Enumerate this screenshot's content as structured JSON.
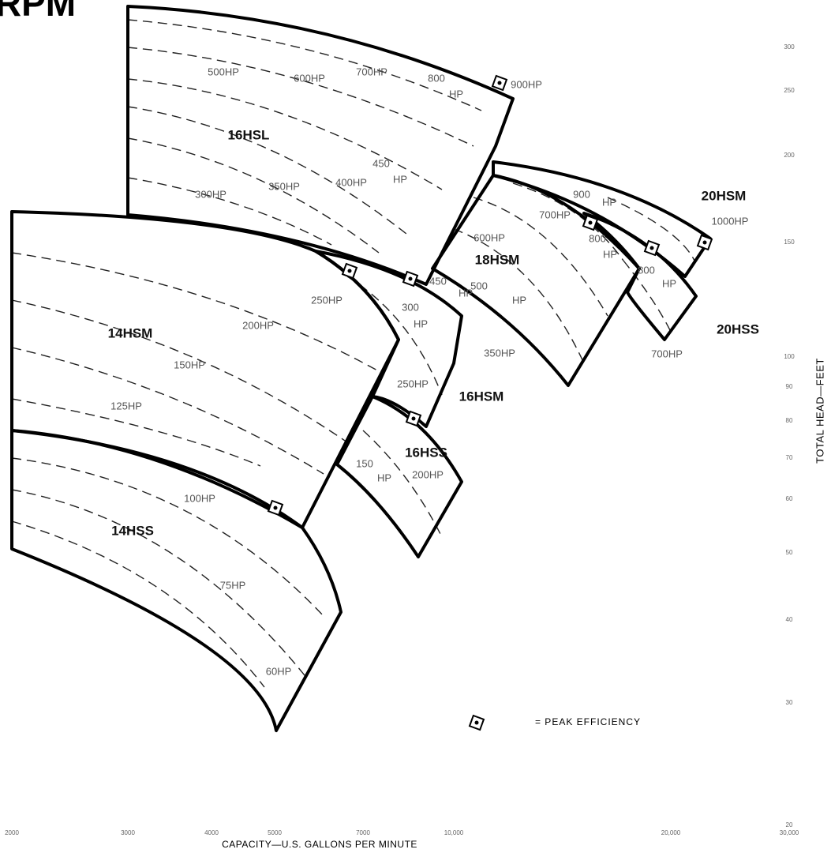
{
  "title": "RPM",
  "x_axis": {
    "label": "CAPACITY—U.S. GALLONS PER MINUTE",
    "ticks": [
      "2000",
      "3000",
      "4000",
      "5000",
      "7000",
      "10,000",
      "20,000",
      "30,000"
    ]
  },
  "y_axis": {
    "label": "TOTAL HEAD—FEET",
    "ticks": [
      "300",
      "250",
      "200",
      "150",
      "100",
      "90",
      "80",
      "70",
      "60",
      "50",
      "40",
      "30",
      "20"
    ]
  },
  "models": [
    {
      "name": "16HSL",
      "hp_labels": [
        "500HP",
        "600HP",
        "700HP",
        "800",
        "HP",
        "900HP",
        "450",
        "HP",
        "300HP",
        "350HP",
        "400HP"
      ]
    },
    {
      "name": "18HSM",
      "hp_labels": [
        "900",
        "HP",
        "700HP",
        "600HP",
        "800",
        "HP",
        "450",
        "HP",
        "500",
        "HP"
      ]
    },
    {
      "name": "20HSM",
      "hp_labels": [
        "1000HP"
      ]
    },
    {
      "name": "20HSS",
      "hp_labels": [
        "800",
        "HP",
        "700HP"
      ]
    },
    {
      "name": "14HSM",
      "hp_labels": [
        "250HP",
        "200HP",
        "150HP",
        "125HP"
      ]
    },
    {
      "name": "16HSM",
      "hp_labels": [
        "300",
        "HP",
        "350HP",
        "250HP"
      ]
    },
    {
      "name": "16HSS",
      "hp_labels": [
        "150",
        "HP",
        "200HP"
      ]
    },
    {
      "name": "14HSS",
      "hp_labels": [
        "100HP",
        "75HP",
        "60HP"
      ]
    }
  ],
  "legend": "= PEAK EFFICIENCY"
}
